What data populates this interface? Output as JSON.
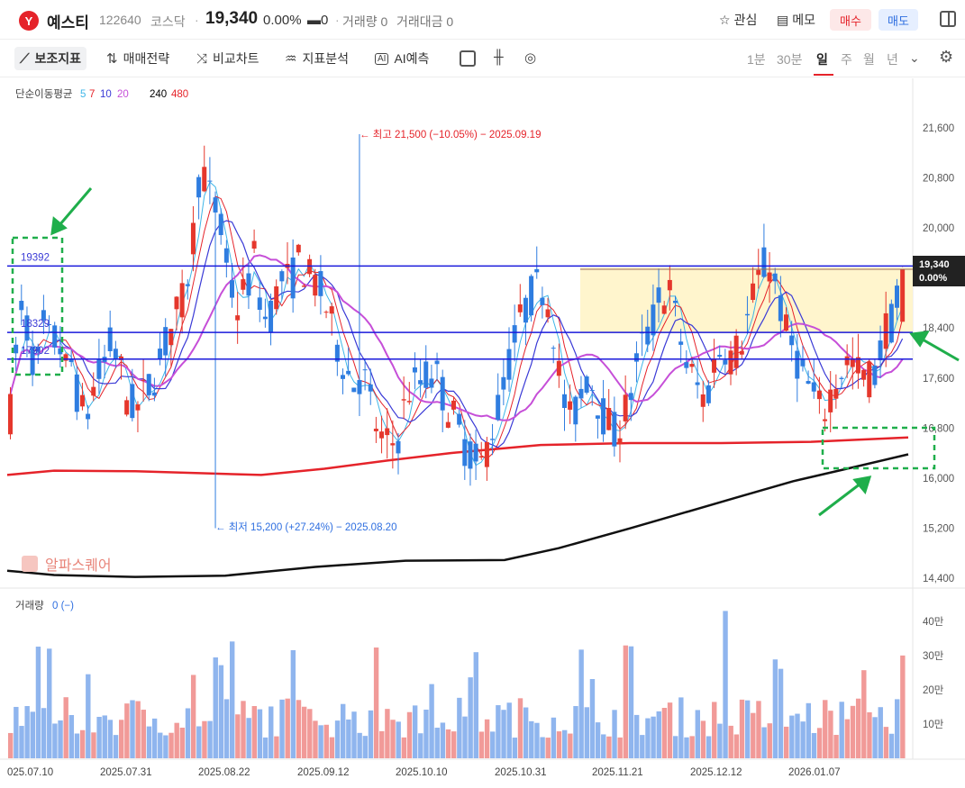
{
  "header": {
    "logo": "Y",
    "name": "예스티",
    "code": "122640",
    "market": "코스닥",
    "dot": "·",
    "price": "19,340",
    "change_rate": "0.00%",
    "change": "▬0",
    "volume_label": "거래량 0",
    "amount_label": "거래대금 0",
    "watch_label": "관심",
    "memo_label": "메모",
    "buy_label": "매수",
    "sell_label": "매도"
  },
  "toolbar": {
    "indicator": "보조지표",
    "strategy": "매매전략",
    "compare": "비교차트",
    "analysis": "지표분석",
    "ai": "AI예측",
    "periods": [
      "1분",
      "30분",
      "일",
      "주",
      "월",
      "년"
    ],
    "selected_period": "일"
  },
  "chart_data": {
    "type": "candlestick",
    "ma_label": "단순이동평균",
    "ma_periods": [
      "5",
      "7",
      "10",
      "20",
      "240",
      "480"
    ],
    "ma_colors": [
      "#3fb6e8",
      "#e5232a",
      "#3a3ad6",
      "#c64fd8",
      "#000000",
      "#e5232a"
    ],
    "y_ticks": [
      "21,600",
      "20,800",
      "20,000",
      "19,200",
      "18,400",
      "17,600",
      "16,800",
      "16,000",
      "15,200",
      "14,400"
    ],
    "y_tick_values": [
      21600,
      20800,
      20000,
      19200,
      18400,
      17600,
      16800,
      16000,
      15200,
      14400
    ],
    "x_ticks": [
      "025.07.10",
      "2025.07.31",
      "2025.08.22",
      "2025.09.12",
      "2025.10.10",
      "2025.10.31",
      "2025.11.21",
      "2025.12.12",
      "2026.01.07"
    ],
    "current_price": "19,340",
    "current_change": "0.00%",
    "high_annotation": "← 최고 21,500 (−10.05%) − 2025.09.19",
    "low_annotation": "← 최저 15,200 (+27.24%) − 2025.08.20",
    "levels": [
      {
        "label": "19392",
        "value": 19392
      },
      {
        "label": "18329",
        "value": 18329
      },
      {
        "label": "17902",
        "value": 17902
      }
    ],
    "watermark": "알파스퀘어",
    "volume_label": "거래량",
    "volume_value": "0 (−)",
    "volume_ticks": [
      "40만",
      "30만",
      "20만",
      "10만"
    ],
    "volume_tick_values": [
      400000,
      300000,
      200000,
      100000
    ]
  }
}
